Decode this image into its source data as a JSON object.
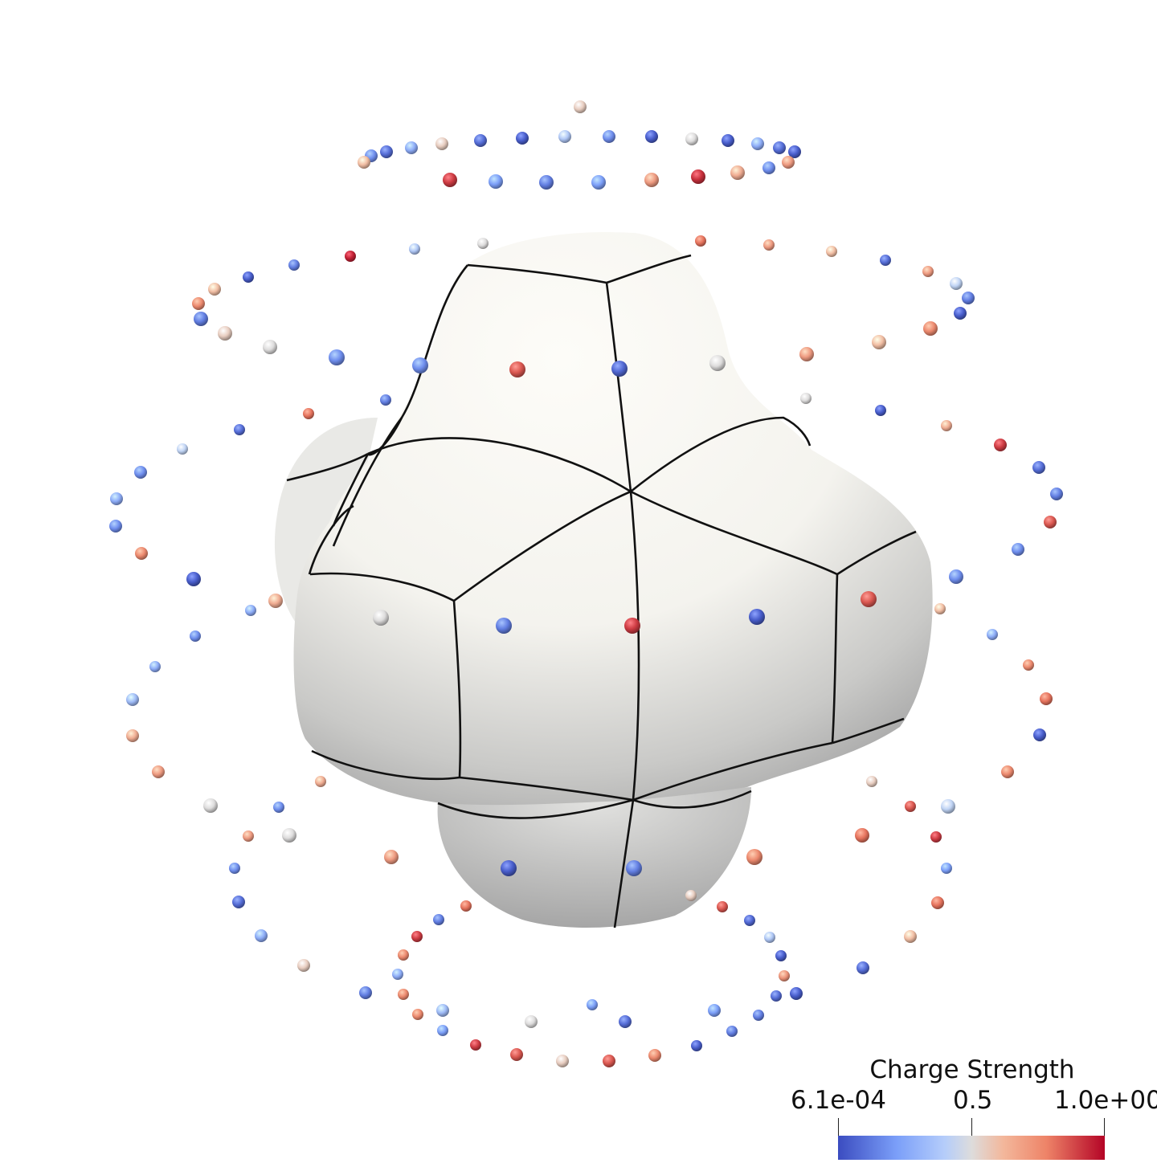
{
  "colors": {
    "low": "#3b4cc0",
    "mid": "#dddcdc",
    "high": "#b40426",
    "surface": "#f7f6f1",
    "seam": "#111111"
  },
  "legend": {
    "title": "Charge Strength",
    "tick_min": "6.1e-04",
    "tick_mid": "0.5",
    "tick_max": "1.0e+00"
  },
  "charges": [
    0.55,
    0.2,
    0.1,
    0.3,
    0.55,
    0.1,
    0.05,
    0.4,
    0.2,
    0.05,
    0.5,
    0.05,
    0.3,
    0.1,
    0.05,
    0.6,
    0.9,
    0.25,
    0.15,
    0.25,
    0.7,
    0.92,
    0.65,
    0.2,
    0.7,
    0.4,
    0.5,
    0.8,
    0.7,
    0.15,
    0.95,
    0.05,
    0.6,
    0.7,
    0.1,
    0.6,
    0.75,
    0.45,
    0.15,
    0.05,
    0.55,
    0.75,
    0.15,
    0.5,
    0.2,
    0.85,
    0.7,
    0.2,
    0.08,
    0.5,
    0.6,
    0.5,
    0.15,
    0.8,
    0.05,
    0.65,
    0.1,
    0.45,
    0.2,
    0.3,
    0.9,
    0.1,
    0.15,
    0.85,
    0.2,
    0.75,
    0.2,
    0.2,
    0.05,
    0.65,
    0.5,
    0.15,
    0.9,
    0.05,
    0.85,
    0.3,
    0.6,
    0.2,
    0.3,
    0.3,
    0.75,
    0.35,
    0.8,
    0.65,
    0.05,
    0.7,
    0.75,
    0.65,
    0.55,
    0.5,
    0.2,
    0.45,
    0.85,
    0.5,
    0.7,
    0.8,
    0.9,
    0.7,
    0.75,
    0.05,
    0.15,
    0.2,
    0.25,
    0.1,
    0.8,
    0.55,
    0.8,
    0.85,
    0.15,
    0.08,
    0.9,
    0.4,
    0.3,
    0.6,
    0.75,
    0.05,
    0.55,
    0.1,
    0.3,
    0.72,
    0.15,
    0.05,
    0.75,
    0.1,
    0.35,
    0.25,
    0.25,
    0.75,
    0.15,
    0.5,
    0.1,
    0.25,
    0.15,
    0.9,
    0.05,
    0.85,
    0.75,
    0.55,
    0.85,
    0.3,
    0.7,
    0.85,
    0.5,
    0.25,
    0.8,
    0.1,
    0.15,
    0.7,
    0.6,
    0.65,
    0.15,
    0.6,
    0.2,
    0.3,
    0.1,
    0.7,
    0.9,
    0.75,
    0.7,
    0.5,
    0.1,
    0.05,
    0.25
  ]
}
